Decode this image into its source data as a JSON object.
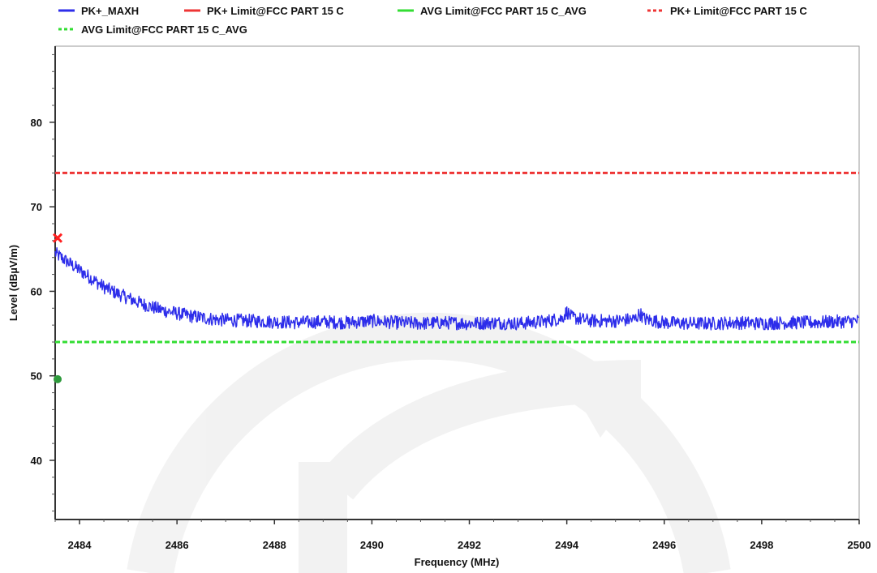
{
  "chart_data": {
    "type": "line",
    "title": "",
    "xlabel": "Frequency (MHz)",
    "ylabel": "Level (dBµV/m)",
    "xlim": [
      2483.5,
      2500
    ],
    "ylim": [
      33,
      89
    ],
    "x_ticks": [
      2484,
      2486,
      2488,
      2490,
      2492,
      2494,
      2496,
      2498,
      2500
    ],
    "y_ticks": [
      40,
      50,
      60,
      70,
      80
    ],
    "grid": false,
    "legend_position": "top",
    "legend": [
      {
        "name": "PK+_MAXH",
        "color": "#2d2dea",
        "style": "solid"
      },
      {
        "name": "PK+ Limit@FCC PART 15 C",
        "color": "#ee3535",
        "style": "solid"
      },
      {
        "name": "AVG Limit@FCC PART 15 C_AVG",
        "color": "#33dd33",
        "style": "solid"
      },
      {
        "name": "PK+ Limit@FCC PART 15 C",
        "color": "#ee3535",
        "style": "dashed"
      },
      {
        "name": "AVG Limit@FCC PART 15 C_AVG",
        "color": "#33dd33",
        "style": "dashed"
      }
    ],
    "series": [
      {
        "name": "PK+_MAXH",
        "color": "#2d2dea",
        "x": [
          2483.5,
          2483.75,
          2484.0,
          2484.25,
          2484.5,
          2484.75,
          2485.0,
          2485.25,
          2485.5,
          2485.75,
          2486.0,
          2486.25,
          2486.5,
          2486.75,
          2487.0,
          2487.5,
          2488.0,
          2488.5,
          2489.0,
          2489.5,
          2490.0,
          2490.5,
          2491.0,
          2491.5,
          2492.0,
          2492.5,
          2493.0,
          2493.5,
          2493.9,
          2494.0,
          2494.1,
          2494.5,
          2495.0,
          2495.4,
          2495.5,
          2495.6,
          2496.0,
          2496.5,
          2497.0,
          2497.5,
          2498.0,
          2498.5,
          2499.0,
          2499.5,
          2500.0
        ],
        "y": [
          64.5,
          63.5,
          62.5,
          61.5,
          60.5,
          59.8,
          59.2,
          58.6,
          58.1,
          57.7,
          57.4,
          57.1,
          56.9,
          56.7,
          56.6,
          56.5,
          56.4,
          56.3,
          56.4,
          56.3,
          56.5,
          56.3,
          56.2,
          56.3,
          56.2,
          56.3,
          56.2,
          56.4,
          56.8,
          57.6,
          56.9,
          56.5,
          56.5,
          56.7,
          57.4,
          56.7,
          56.3,
          56.2,
          56.2,
          56.3,
          56.2,
          56.3,
          56.3,
          56.4,
          56.5
        ],
        "noise_amplitude_db": 1.6
      },
      {
        "name": "PK+ Limit@FCC PART 15 C",
        "color": "#ee3535",
        "style": "dashed",
        "x": [
          2483.5,
          2500
        ],
        "y": [
          74,
          74
        ]
      },
      {
        "name": "AVG Limit@FCC PART 15 C_AVG",
        "color": "#33dd33",
        "style": "dashed",
        "x": [
          2483.5,
          2500
        ],
        "y": [
          54,
          54
        ]
      }
    ],
    "markers": [
      {
        "x": 2483.55,
        "y": 66.3,
        "shape": "x",
        "color": "#ff2020"
      },
      {
        "x": 2483.55,
        "y": 49.6,
        "shape": "circle",
        "color": "#2e9a3c"
      }
    ]
  }
}
